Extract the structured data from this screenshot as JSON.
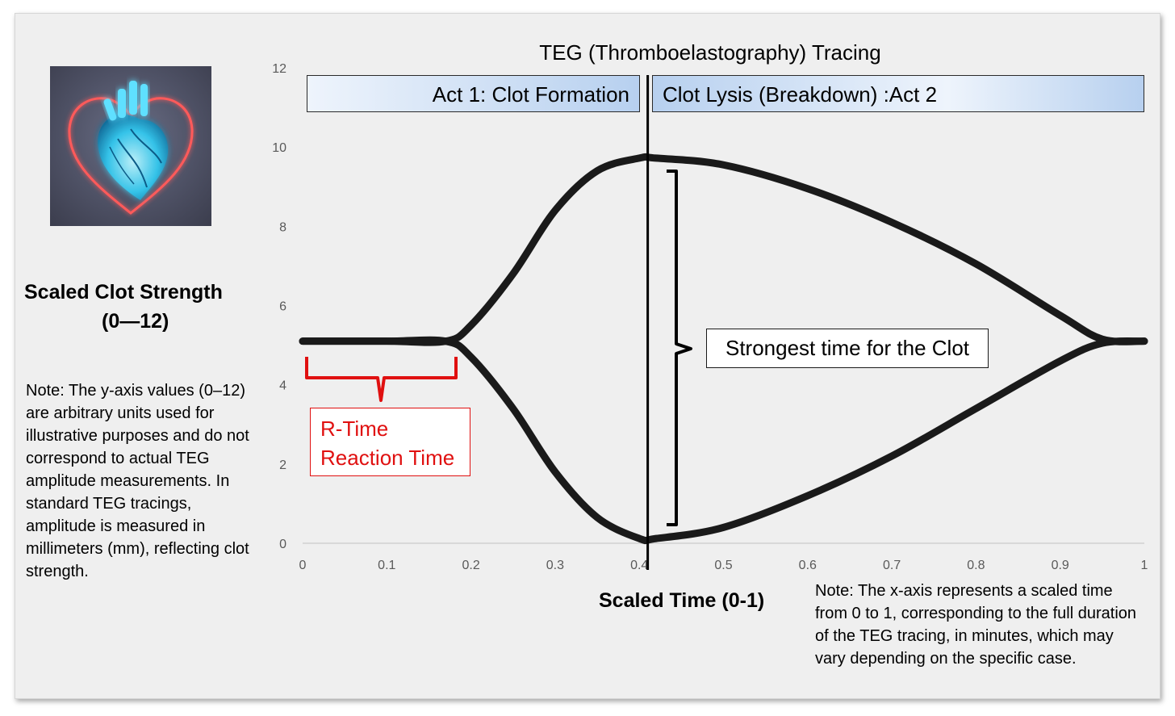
{
  "chart_data": {
    "type": "line",
    "title": "TEG (Thromboelastography) Tracing",
    "xlabel": "Scaled Time (0-1)",
    "ylabel": "Scaled Clot Strength (0—12)",
    "ylabel_lines": [
      "Scaled Clot Strength",
      "(0—12)"
    ],
    "xlim": [
      0,
      1
    ],
    "ylim": [
      0,
      12
    ],
    "x_ticks": [
      "0",
      "0.1",
      "0.2",
      "0.3",
      "0.4",
      "0.5",
      "0.6",
      "0.7",
      "0.8",
      "0.9",
      "1"
    ],
    "y_ticks": [
      "0",
      "2",
      "4",
      "6",
      "8",
      "10",
      "12"
    ],
    "grid": false,
    "series": [
      {
        "x": [
          0,
          0.1,
          0.17,
          0.2,
          0.25,
          0.3,
          0.35,
          0.4,
          0.42,
          0.5,
          0.6,
          0.7,
          0.8,
          0.9,
          0.95,
          1.0
        ],
        "y": [
          5.1,
          5.1,
          5.1,
          5.5,
          6.8,
          8.4,
          9.4,
          9.72,
          9.72,
          9.55,
          8.95,
          8.1,
          7.05,
          5.75,
          5.15,
          5.1
        ]
      },
      {
        "x": [
          0,
          0.1,
          0.17,
          0.2,
          0.25,
          0.3,
          0.35,
          0.4,
          0.42,
          0.5,
          0.6,
          0.7,
          0.8,
          0.9,
          0.95,
          1.0
        ],
        "y": [
          5.1,
          5.1,
          5.1,
          4.7,
          3.4,
          1.8,
          0.65,
          0.12,
          0.12,
          0.4,
          1.2,
          2.2,
          3.4,
          4.6,
          5.05,
          5.1
        ]
      }
    ],
    "vertical_line_x": 0.41,
    "annotations": {
      "act1": "Act 1: Clot Formation",
      "act2": "Clot Lysis (Breakdown) :Act 2",
      "strongest": "Strongest time for the Clot",
      "rtime_line1": "R-Time",
      "rtime_line2": "Reaction Time"
    },
    "colors": {
      "curve": "#1a1a1a",
      "rtime": "#e01010",
      "banner": "#b7d0ef"
    }
  },
  "notes": {
    "y_axis_note": "Note: The y-axis values (0–12) are arbitrary units used for illustrative purposes and do not correspond to actual TEG amplitude measurements. In standard TEG tracings, amplitude is measured in millimeters (mm), reflecting clot strength.",
    "x_axis_note": "Note: The x-axis represents a scaled time from 0 to 1, corresponding to the full duration of the TEG tracing, in minutes, which may vary depending on the specific case."
  },
  "image": {
    "icon": "glowing-heart-icon"
  }
}
